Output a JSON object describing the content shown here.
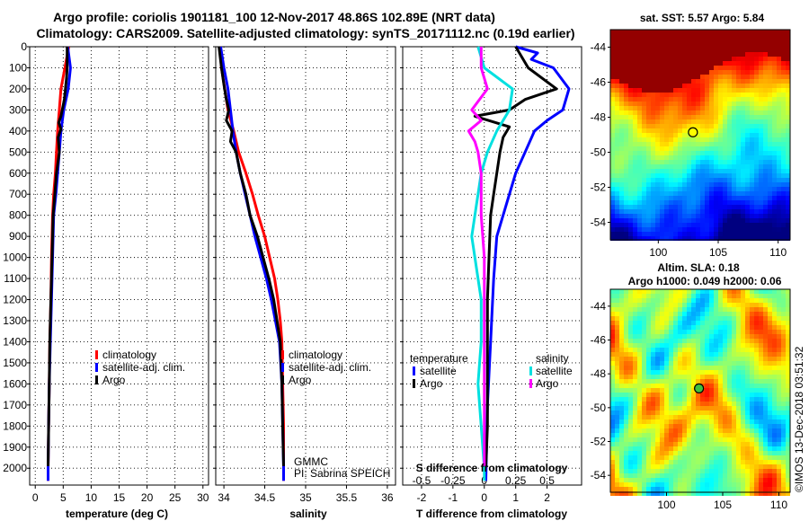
{
  "header": {
    "line1": "Argo profile: coriolis 1901181_100 12-Nov-2017 48.86S 102.89E (NRT data)",
    "line2": "Climatology: CARS2009. Satellite-adjusted climatology: synTS_20171112.nc (0.19d earlier)"
  },
  "colors": {
    "climatology": "#ff0000",
    "satellite": "#0000ff",
    "argo": "#000000",
    "sat_salinity": "#00e0e0",
    "argo_salinity_diff": "#ff00ff"
  },
  "chart_data": [
    {
      "type": "line",
      "id": "temperature",
      "xlabel": "temperature (deg C)",
      "ylabel": "",
      "xlim": [
        -1,
        31
      ],
      "ylim": [
        2080,
        0
      ],
      "xticks": [
        0,
        5,
        10,
        15,
        20,
        25,
        30
      ],
      "yticks": [
        0,
        100,
        200,
        300,
        400,
        500,
        600,
        700,
        800,
        900,
        1000,
        1100,
        1200,
        1300,
        1400,
        1500,
        1600,
        1700,
        1800,
        1900,
        2000
      ],
      "legend": {
        "position": "bottom-right",
        "entries": [
          "climatology",
          "satellite-adj. clim.",
          "Argo"
        ]
      },
      "series": [
        {
          "name": "climatology",
          "color": "#ff0000",
          "points": [
            [
              6,
              0
            ],
            [
              5.3,
              100
            ],
            [
              4.6,
              200
            ],
            [
              4.3,
              300
            ],
            [
              4,
              400
            ],
            [
              3.8,
              500
            ],
            [
              3.6,
              600
            ],
            [
              3.3,
              700
            ],
            [
              3.1,
              800
            ],
            [
              2.9,
              1000
            ],
            [
              2.8,
              1200
            ],
            [
              2.6,
              1400
            ],
            [
              2.5,
              1600
            ],
            [
              2.4,
              1800
            ],
            [
              2.3,
              2000
            ],
            [
              2.3,
              2060
            ]
          ]
        },
        {
          "name": "satellite-adj. clim.",
          "color": "#0000ff",
          "points": [
            [
              5.8,
              0
            ],
            [
              6.3,
              100
            ],
            [
              5.9,
              200
            ],
            [
              5.1,
              300
            ],
            [
              4.6,
              400
            ],
            [
              4.3,
              500
            ],
            [
              4,
              600
            ],
            [
              3.7,
              700
            ],
            [
              3.3,
              800
            ],
            [
              3.1,
              1000
            ],
            [
              2.9,
              1200
            ],
            [
              2.7,
              1400
            ],
            [
              2.5,
              1600
            ],
            [
              2.4,
              1800
            ],
            [
              2.3,
              2000
            ],
            [
              2.3,
              2060
            ]
          ]
        },
        {
          "name": "Argo",
          "color": "#000000",
          "points": [
            [
              5.7,
              0
            ],
            [
              5.7,
              100
            ],
            [
              5.6,
              150
            ],
            [
              5.2,
              250
            ],
            [
              4.6,
              330
            ],
            [
              4.2,
              360
            ],
            [
              4.6,
              390
            ],
            [
              4.1,
              430
            ],
            [
              4.3,
              500
            ],
            [
              3.8,
              600
            ],
            [
              3.5,
              700
            ],
            [
              3.2,
              800
            ],
            [
              3.0,
              1000
            ],
            [
              2.8,
              1200
            ],
            [
              2.6,
              1400
            ],
            [
              2.5,
              1600
            ],
            [
              2.4,
              1800
            ],
            [
              2.3,
              1990
            ]
          ]
        }
      ]
    },
    {
      "type": "line",
      "id": "salinity",
      "xlabel": "salinity",
      "ylabel": "",
      "xlim": [
        33.9,
        36.1
      ],
      "ylim": [
        2080,
        0
      ],
      "xticks": [
        34,
        34.5,
        35,
        35.5,
        36
      ],
      "legend": {
        "position": "bottom-right",
        "entries": [
          "climatology",
          "satellite-adj. clim.",
          "Argo"
        ]
      },
      "series": [
        {
          "name": "climatology",
          "color": "#ff0000",
          "points": [
            [
              33.95,
              0
            ],
            [
              33.97,
              100
            ],
            [
              34.01,
              200
            ],
            [
              34.05,
              300
            ],
            [
              34.12,
              400
            ],
            [
              34.18,
              500
            ],
            [
              34.27,
              600
            ],
            [
              34.35,
              700
            ],
            [
              34.42,
              800
            ],
            [
              34.5,
              900
            ],
            [
              34.56,
              1000
            ],
            [
              34.62,
              1100
            ],
            [
              34.66,
              1200
            ],
            [
              34.69,
              1300
            ],
            [
              34.71,
              1400
            ],
            [
              34.72,
              1600
            ],
            [
              34.73,
              1800
            ],
            [
              34.73,
              2000
            ],
            [
              34.73,
              2060
            ]
          ]
        },
        {
          "name": "satellite-adj. clim.",
          "color": "#0000ff",
          "points": [
            [
              33.96,
              0
            ],
            [
              34.0,
              100
            ],
            [
              34.05,
              200
            ],
            [
              34.08,
              300
            ],
            [
              34.11,
              400
            ],
            [
              34.15,
              500
            ],
            [
              34.2,
              600
            ],
            [
              34.26,
              700
            ],
            [
              34.32,
              800
            ],
            [
              34.38,
              900
            ],
            [
              34.45,
              1000
            ],
            [
              34.52,
              1100
            ],
            [
              34.58,
              1200
            ],
            [
              34.63,
              1300
            ],
            [
              34.68,
              1400
            ],
            [
              34.71,
              1600
            ],
            [
              34.72,
              1800
            ],
            [
              34.73,
              2000
            ],
            [
              34.73,
              2060
            ]
          ]
        },
        {
          "name": "Argo",
          "color": "#000000",
          "points": [
            [
              33.94,
              0
            ],
            [
              33.97,
              100
            ],
            [
              34.0,
              180
            ],
            [
              34.03,
              250
            ],
            [
              34.06,
              300
            ],
            [
              34.03,
              350
            ],
            [
              34.1,
              400
            ],
            [
              34.08,
              450
            ],
            [
              34.15,
              500
            ],
            [
              34.2,
              600
            ],
            [
              34.27,
              700
            ],
            [
              34.32,
              800
            ],
            [
              34.41,
              900
            ],
            [
              34.48,
              1000
            ],
            [
              34.55,
              1100
            ],
            [
              34.61,
              1200
            ],
            [
              34.65,
              1300
            ],
            [
              34.69,
              1400
            ],
            [
              34.71,
              1600
            ],
            [
              34.72,
              1800
            ],
            [
              34.73,
              1990
            ]
          ]
        }
      ]
    },
    {
      "type": "line",
      "id": "difference",
      "xlabel": "T difference from climatology",
      "x2label": "S difference from climatology",
      "ylabel": "",
      "xlim": [
        -2.6,
        3.1
      ],
      "ylim": [
        2080,
        0
      ],
      "xticks": [
        -2,
        -1,
        0,
        1,
        2
      ],
      "x2ticks": [
        "-0.5",
        "-0.25",
        "0",
        "0.25",
        "0.5"
      ],
      "legend": {
        "position": "bottom-right",
        "temperature_title": "temperature",
        "salinity_title": "salinity",
        "entries_left": [
          "satellite",
          "Argo"
        ],
        "entries_right": [
          "satellite",
          "Argo"
        ]
      },
      "series": [
        {
          "name": "temperature satellite",
          "color": "#0000ff",
          "points": [
            [
              1.0,
              0
            ],
            [
              1.7,
              30
            ],
            [
              1.5,
              60
            ],
            [
              2.2,
              100
            ],
            [
              2.7,
              200
            ],
            [
              2.5,
              300
            ],
            [
              2.0,
              350
            ],
            [
              1.6,
              400
            ],
            [
              1.3,
              500
            ],
            [
              1.0,
              600
            ],
            [
              0.8,
              700
            ],
            [
              0.6,
              800
            ],
            [
              0.4,
              900
            ],
            [
              0.3,
              1100
            ],
            [
              0.2,
              1400
            ],
            [
              0.1,
              1700
            ],
            [
              0.05,
              2060
            ]
          ]
        },
        {
          "name": "temperature Argo",
          "color": "#000000",
          "points": [
            [
              1.0,
              0
            ],
            [
              1.4,
              100
            ],
            [
              2.3,
              200
            ],
            [
              1.3,
              250
            ],
            [
              0.8,
              300
            ],
            [
              -0.3,
              330
            ],
            [
              0.8,
              380
            ],
            [
              0.6,
              430
            ],
            [
              0.5,
              500
            ],
            [
              0.4,
              600
            ],
            [
              0.3,
              700
            ],
            [
              0.2,
              800
            ],
            [
              0.15,
              1000
            ],
            [
              0.1,
              1200
            ],
            [
              0.1,
              1500
            ],
            [
              0.1,
              1800
            ],
            [
              0.05,
              1990
            ]
          ]
        },
        {
          "name": "salinity satellite",
          "color": "#00e0e0",
          "points": [
            [
              -0.2,
              0
            ],
            [
              0.0,
              100
            ],
            [
              0.9,
              200
            ],
            [
              0.8,
              300
            ],
            [
              0.4,
              400
            ],
            [
              0.1,
              500
            ],
            [
              -0.1,
              600
            ],
            [
              -0.2,
              700
            ],
            [
              -0.3,
              800
            ],
            [
              -0.4,
              900
            ],
            [
              -0.3,
              1000
            ],
            [
              -0.2,
              1100
            ],
            [
              -0.1,
              1200
            ],
            [
              -0.1,
              1400
            ],
            [
              -0.2,
              1600
            ],
            [
              -0.1,
              1800
            ],
            [
              0.0,
              2000
            ],
            [
              0.0,
              2060
            ]
          ]
        },
        {
          "name": "salinity Argo",
          "color": "#ff00ff",
          "points": [
            [
              -0.1,
              0
            ],
            [
              -0.1,
              100
            ],
            [
              0.1,
              200
            ],
            [
              -0.4,
              300
            ],
            [
              -0.1,
              350
            ],
            [
              -0.5,
              400
            ],
            [
              -0.3,
              450
            ],
            [
              -0.2,
              500
            ],
            [
              -0.1,
              600
            ],
            [
              -0.1,
              800
            ],
            [
              0.0,
              1000
            ],
            [
              0.0,
              1300
            ],
            [
              0.0,
              1600
            ],
            [
              0.0,
              1900
            ],
            [
              0.0,
              1990
            ]
          ]
        }
      ]
    },
    {
      "type": "heatmap",
      "id": "sst_map",
      "title": "sat. SST: 5.57 Argo: 5.84",
      "xticks": [
        100,
        105,
        110
      ],
      "yticks": [
        -44,
        -46,
        -48,
        -50,
        -52,
        -54
      ],
      "marker": {
        "lon": 102.89,
        "lat": -48.86
      },
      "xlim": [
        96,
        111
      ],
      "ylim": [
        -55,
        -43
      ]
    },
    {
      "type": "heatmap",
      "id": "sla_map",
      "title": "Altim. SLA: 0.18",
      "subtitle": "Argo h1000: 0.049 h2000: 0.06",
      "xticks": [
        100,
        105,
        110
      ],
      "yticks": [
        -44,
        -46,
        -48,
        -50,
        -52,
        -54
      ],
      "marker": {
        "lon": 102.89,
        "lat": -48.86
      },
      "xlim": [
        95,
        111
      ],
      "ylim": [
        -55,
        -43
      ]
    }
  ],
  "annotations": {
    "gmmc": "GMMC",
    "pi": "PI: Sabrina SPEICH",
    "imos": "©IMOS 13-Dec-2018 03:51:32"
  }
}
